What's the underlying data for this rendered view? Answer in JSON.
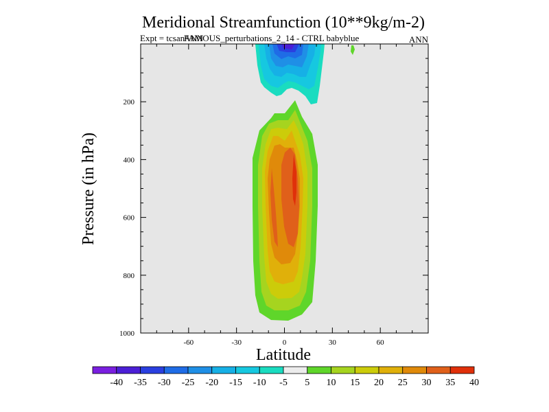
{
  "chart_data": {
    "type": "contour",
    "title": "Meridional Streamfunction (10**9kg/m-2)",
    "subtitle_left_a": "Expt = tcsan",
    "subtitle_left_b": "FAMOUS_perturbations_2_14 - CTRL babyblue",
    "subtitle_overlap": "ANN",
    "subtitle_right": "ANN",
    "xlabel": "Latitude",
    "ylabel": "Pressure (in hPa)",
    "xlim": [
      -90,
      90
    ],
    "ylim": [
      1000,
      0
    ],
    "x_ticks": [
      -60,
      -30,
      0,
      30,
      60
    ],
    "x_tick_labels": [
      "-60",
      "-30",
      "0",
      "30",
      "60"
    ],
    "y_ticks": [
      200,
      400,
      600,
      800,
      1000
    ],
    "y_tick_labels": [
      "200",
      "400",
      "600",
      "800",
      "1000"
    ],
    "background_color": "#e6e6e6",
    "contour_levels": [
      -40,
      -35,
      -30,
      -25,
      -20,
      -15,
      -10,
      -5,
      5,
      10,
      15,
      20,
      25,
      30,
      35,
      40
    ],
    "colorbar_labels": [
      "-40",
      "-35",
      "-30",
      "-25",
      "-20",
      "-15",
      "-10",
      "-5",
      "5",
      "10",
      "15",
      "20",
      "25",
      "30",
      "35",
      "40"
    ],
    "colorbar_colors": [
      "#7a1fe0",
      "#4b1fd6",
      "#2a3fe0",
      "#1f6ce6",
      "#1f8fe6",
      "#16b0e6",
      "#16c8e0",
      "#1adcc0",
      "#ececec",
      "#5fd62a",
      "#a6d41f",
      "#cccc0a",
      "#e0b00a",
      "#e08a0a",
      "#e0601a",
      "#e0300a"
    ],
    "features": [
      {
        "name": "northern-positive-cell",
        "sign": "positive",
        "lat_range": [
          -15,
          20
        ],
        "pressure_range": [
          200,
          950
        ],
        "max_value": 40,
        "max_location": {
          "lat": 5,
          "pressure": 450
        }
      },
      {
        "name": "upper-negative-cell",
        "sign": "negative",
        "lat_range": [
          -10,
          20
        ],
        "pressure_range": [
          0,
          200
        ],
        "min_value": -35,
        "min_location": {
          "lat": 2,
          "pressure": 5
        }
      },
      {
        "name": "small-positive-spot",
        "sign": "positive",
        "lat_range": [
          42,
          44
        ],
        "pressure_range": [
          0,
          30
        ],
        "max_value": 10
      }
    ]
  }
}
